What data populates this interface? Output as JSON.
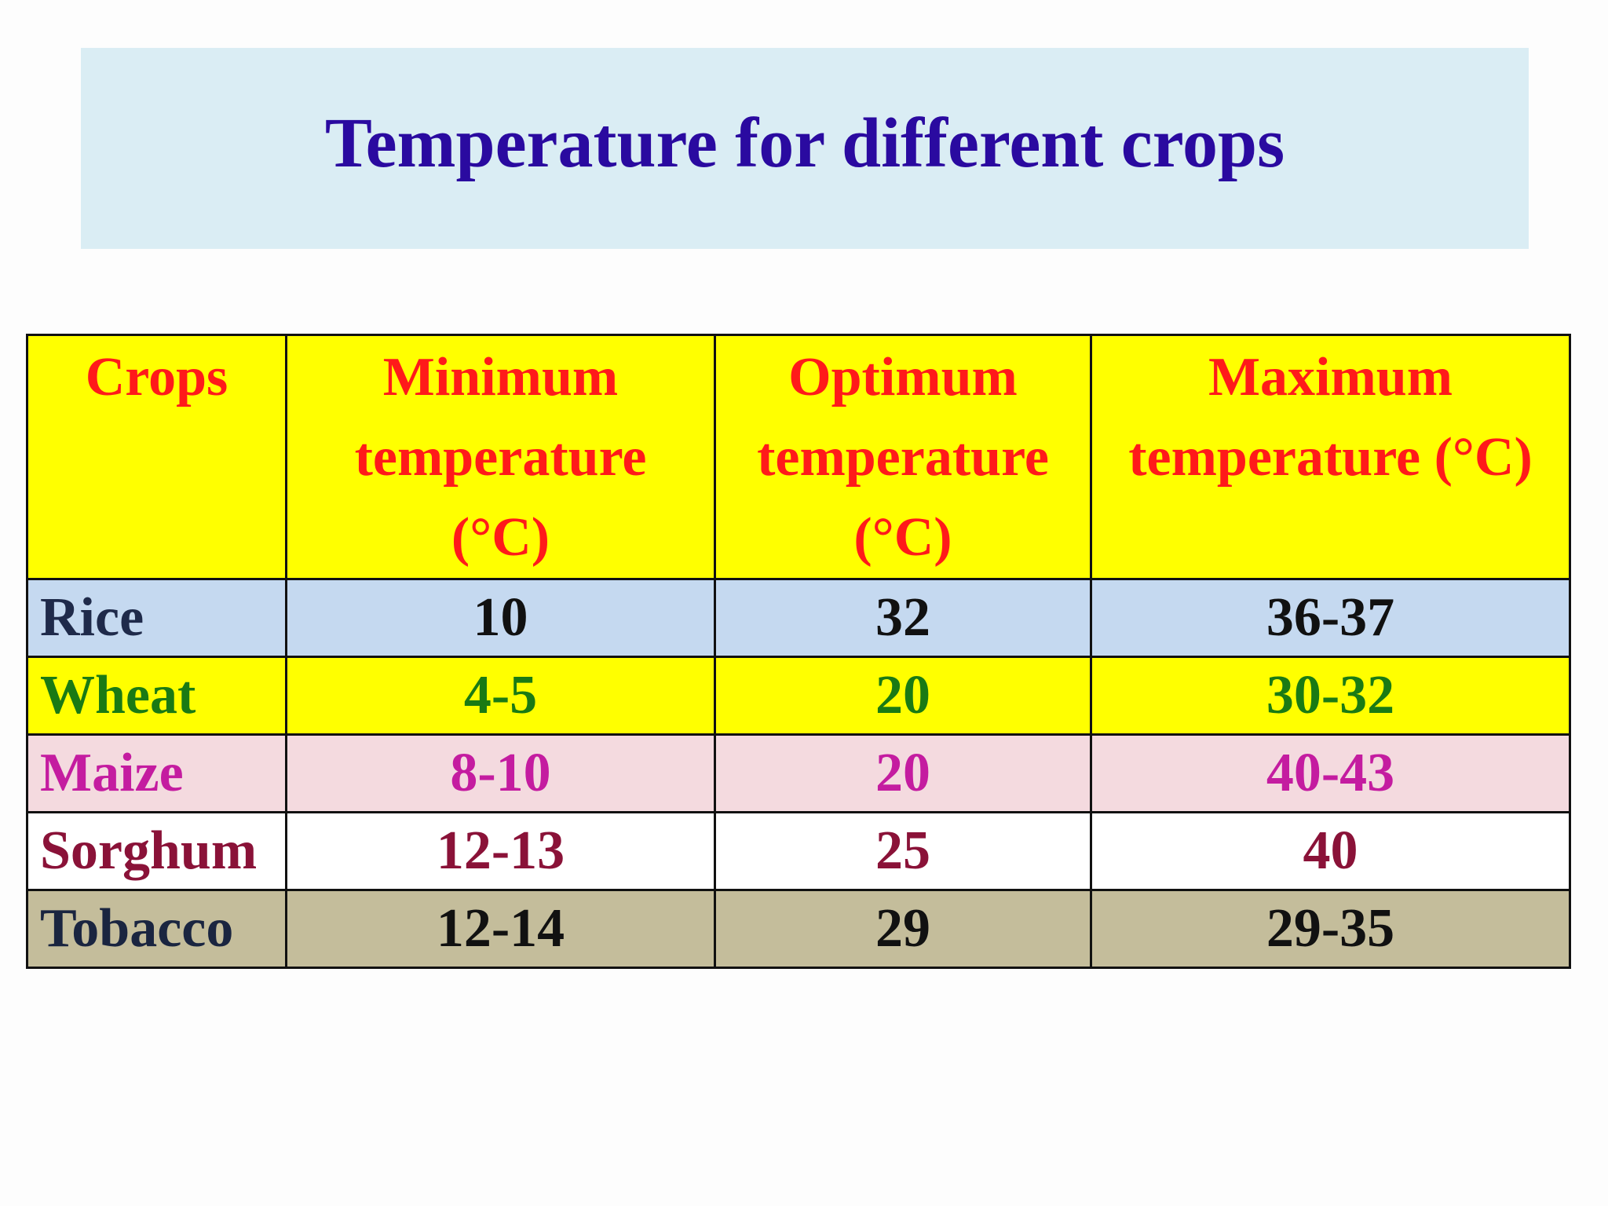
{
  "title": "Temperature for different crops",
  "table": {
    "headers": [
      "Crops",
      "Minimum temperature (°C)",
      "Optimum temperature (°C)",
      "Maximum temperature (°C)"
    ],
    "rows": [
      {
        "crop": "Rice",
        "min": "10",
        "opt": "32",
        "max": "36-37",
        "bg": "#c5d9f0",
        "name_color": "#1f2a4a",
        "value_color": "#111111"
      },
      {
        "crop": "Wheat",
        "min": "4-5",
        "opt": "20",
        "max": "30-32",
        "bg": "#ffff00",
        "name_color": "#1a7a14",
        "value_color": "#1a7a14"
      },
      {
        "crop": "Maize",
        "min": "8-10",
        "opt": "20",
        "max": "40-43",
        "bg": "#f4dadf",
        "name_color": "#c41ca0",
        "value_color": "#c41ca0"
      },
      {
        "crop": "Sorghum",
        "min": "12-13",
        "opt": "25",
        "max": "40",
        "bg": "#ffffff",
        "name_color": "#8a1238",
        "value_color": "#8a1238"
      },
      {
        "crop": "Tobacco",
        "min": "12-14",
        "opt": "29",
        "max": "29-35",
        "bg": "#c4bd9b",
        "name_color": "#1a2540",
        "value_color": "#111111"
      }
    ]
  },
  "colors": {
    "title_box_bg": "#daedf4",
    "title_text": "#2a0aa0",
    "header_bg": "#ffff00",
    "header_text": "#ff1a1a"
  }
}
